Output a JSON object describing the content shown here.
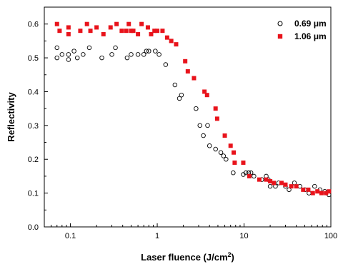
{
  "chart_data": {
    "type": "scatter",
    "xscale": "log",
    "xlim": [
      0.05,
      100
    ],
    "ylim": [
      0.0,
      0.65
    ],
    "xticks": [
      {
        "value": 0.1,
        "label": "0.1"
      },
      {
        "value": 1,
        "label": "1"
      },
      {
        "value": 10,
        "label": "10"
      },
      {
        "value": 100,
        "label": "100"
      }
    ],
    "yticks": [
      {
        "value": 0.0,
        "label": "0.0"
      },
      {
        "value": 0.1,
        "label": "0.1"
      },
      {
        "value": 0.2,
        "label": "0.2"
      },
      {
        "value": 0.3,
        "label": "0.3"
      },
      {
        "value": 0.4,
        "label": "0.4"
      },
      {
        "value": 0.5,
        "label": "0.5"
      },
      {
        "value": 0.6,
        "label": "0.6"
      }
    ],
    "xlabel_main": "Laser fluence (J/cm",
    "xlabel_sup": "2",
    "xlabel_end": ")",
    "ylabel": "Reflectivity",
    "grid": false,
    "legend_position": "top-right",
    "series": [
      {
        "name": "0.69 μm",
        "marker": "open-circle",
        "color": "#000000",
        "points": [
          [
            0.07,
            0.53
          ],
          [
            0.07,
            0.5
          ],
          [
            0.08,
            0.51
          ],
          [
            0.095,
            0.51
          ],
          [
            0.095,
            0.495
          ],
          [
            0.11,
            0.52
          ],
          [
            0.12,
            0.5
          ],
          [
            0.14,
            0.51
          ],
          [
            0.165,
            0.53
          ],
          [
            0.23,
            0.5
          ],
          [
            0.3,
            0.51
          ],
          [
            0.33,
            0.53
          ],
          [
            0.45,
            0.5
          ],
          [
            0.5,
            0.51
          ],
          [
            0.6,
            0.51
          ],
          [
            0.7,
            0.51
          ],
          [
            0.75,
            0.52
          ],
          [
            0.8,
            0.52
          ],
          [
            0.95,
            0.52
          ],
          [
            1.05,
            0.51
          ],
          [
            1.25,
            0.48
          ],
          [
            1.6,
            0.42
          ],
          [
            1.8,
            0.38
          ],
          [
            1.9,
            0.39
          ],
          [
            2.8,
            0.35
          ],
          [
            3.1,
            0.3
          ],
          [
            3.4,
            0.27
          ],
          [
            3.8,
            0.3
          ],
          [
            4.0,
            0.24
          ],
          [
            4.7,
            0.23
          ],
          [
            5.4,
            0.22
          ],
          [
            5.8,
            0.21
          ],
          [
            6.2,
            0.2
          ],
          [
            7.5,
            0.16
          ],
          [
            9.8,
            0.155
          ],
          [
            10.5,
            0.16
          ],
          [
            11.3,
            0.16
          ],
          [
            12.0,
            0.16
          ],
          [
            13.0,
            0.15
          ],
          [
            16.0,
            0.14
          ],
          [
            18.0,
            0.15
          ],
          [
            19.0,
            0.14
          ],
          [
            20.0,
            0.12
          ],
          [
            23.0,
            0.12
          ],
          [
            25.0,
            0.13
          ],
          [
            30.0,
            0.12
          ],
          [
            33.0,
            0.11
          ],
          [
            38.0,
            0.13
          ],
          [
            44.0,
            0.12
          ],
          [
            50.0,
            0.11
          ],
          [
            56.0,
            0.1
          ],
          [
            65.0,
            0.12
          ],
          [
            75.0,
            0.11
          ],
          [
            85.0,
            0.105
          ],
          [
            95.0,
            0.095
          ]
        ]
      },
      {
        "name": "1.06 μm",
        "marker": "filled-square",
        "color": "#e8131b",
        "points": [
          [
            0.07,
            0.6
          ],
          [
            0.075,
            0.58
          ],
          [
            0.095,
            0.59
          ],
          [
            0.095,
            0.57
          ],
          [
            0.13,
            0.58
          ],
          [
            0.155,
            0.6
          ],
          [
            0.17,
            0.58
          ],
          [
            0.2,
            0.59
          ],
          [
            0.24,
            0.57
          ],
          [
            0.29,
            0.59
          ],
          [
            0.34,
            0.6
          ],
          [
            0.39,
            0.58
          ],
          [
            0.44,
            0.58
          ],
          [
            0.47,
            0.6
          ],
          [
            0.5,
            0.58
          ],
          [
            0.53,
            0.58
          ],
          [
            0.6,
            0.57
          ],
          [
            0.66,
            0.6
          ],
          [
            0.78,
            0.59
          ],
          [
            0.85,
            0.57
          ],
          [
            0.93,
            0.58
          ],
          [
            1.0,
            0.58
          ],
          [
            1.15,
            0.58
          ],
          [
            1.3,
            0.56
          ],
          [
            1.45,
            0.55
          ],
          [
            1.65,
            0.54
          ],
          [
            2.1,
            0.49
          ],
          [
            2.25,
            0.46
          ],
          [
            2.65,
            0.44
          ],
          [
            3.5,
            0.4
          ],
          [
            3.75,
            0.39
          ],
          [
            4.7,
            0.35
          ],
          [
            4.9,
            0.32
          ],
          [
            6.0,
            0.27
          ],
          [
            7.0,
            0.24
          ],
          [
            7.6,
            0.22
          ],
          [
            7.8,
            0.19
          ],
          [
            9.8,
            0.19
          ],
          [
            11.5,
            0.15
          ],
          [
            15.0,
            0.14
          ],
          [
            18.0,
            0.14
          ],
          [
            20.0,
            0.135
          ],
          [
            22.0,
            0.13
          ],
          [
            27.0,
            0.13
          ],
          [
            30.0,
            0.125
          ],
          [
            35.0,
            0.12
          ],
          [
            40.0,
            0.12
          ],
          [
            48.0,
            0.11
          ],
          [
            55.0,
            0.11
          ],
          [
            62.0,
            0.1
          ],
          [
            70.0,
            0.105
          ],
          [
            78.0,
            0.1
          ],
          [
            88.0,
            0.1
          ],
          [
            95.0,
            0.105
          ]
        ]
      }
    ]
  }
}
